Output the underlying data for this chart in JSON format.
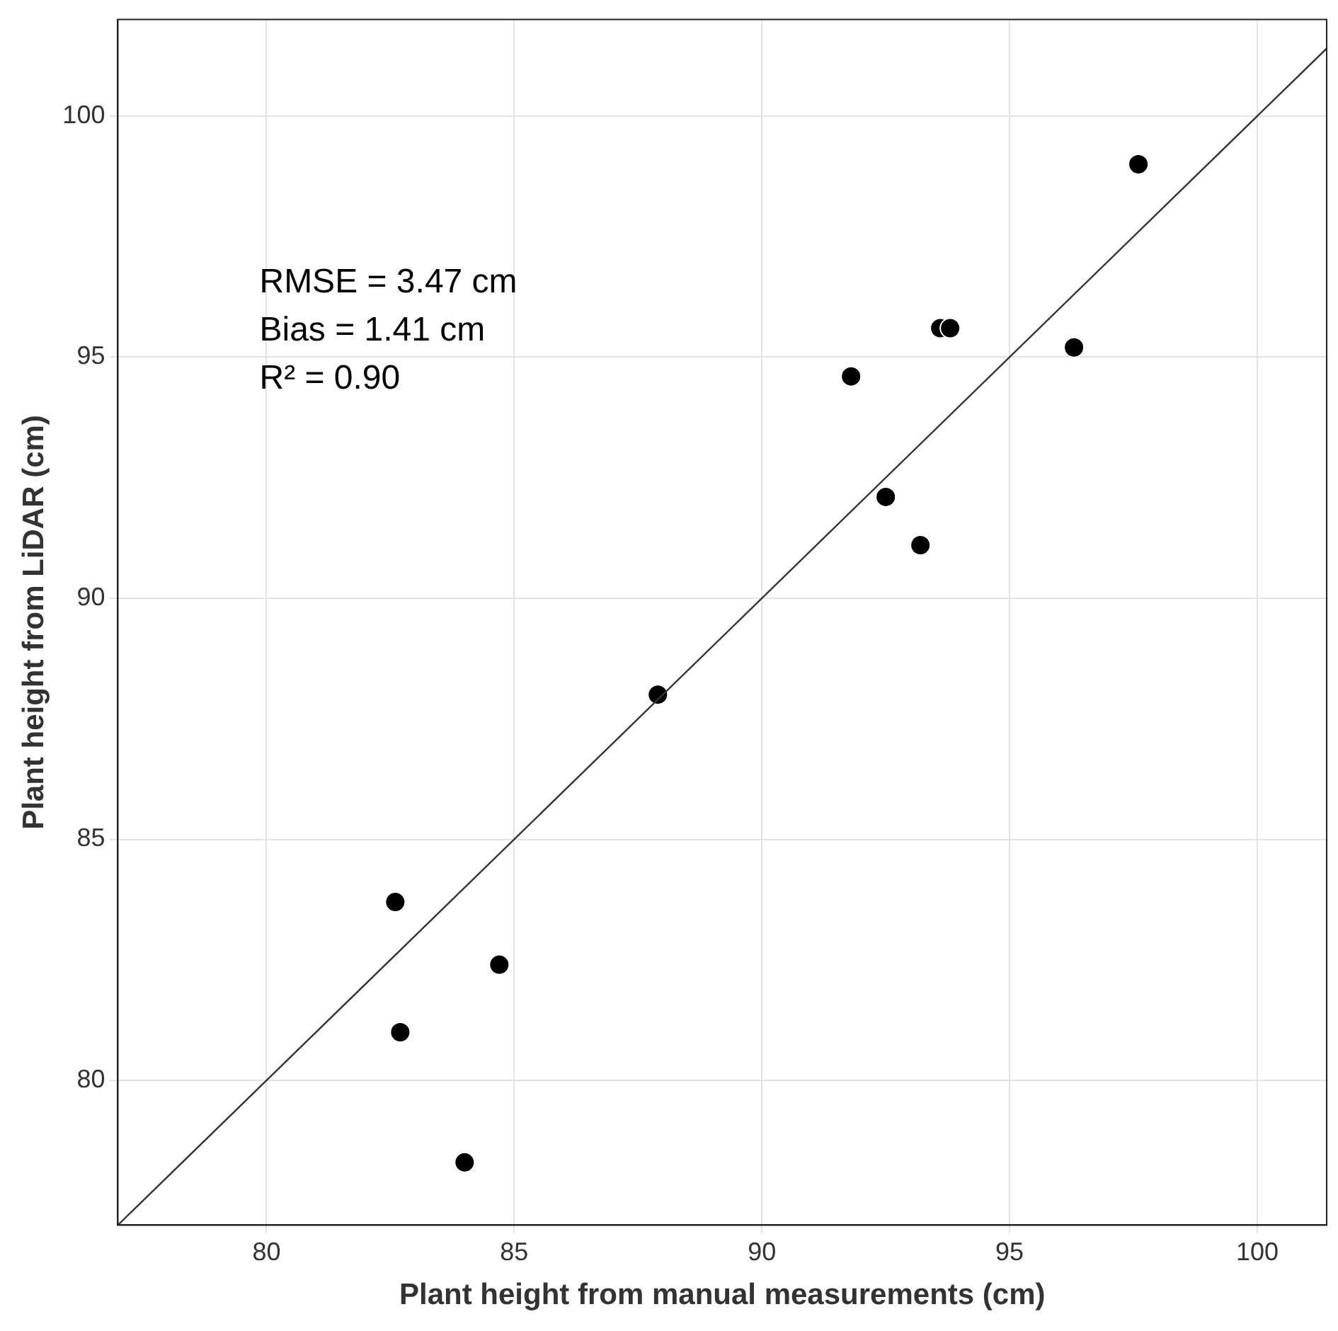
{
  "chart_data": {
    "type": "scatter",
    "xlabel": "Plant height from manual measurements (cm)",
    "ylabel": "Plant height from LiDAR (cm)",
    "annotations": [
      "RMSE = 3.47 cm",
      "Bias = 1.41 cm",
      "R² = 0.90"
    ],
    "xlim": [
      77,
      101.4
    ],
    "xticks": [
      80,
      85,
      90,
      95,
      100
    ],
    "ylim": [
      77,
      102
    ],
    "yticks": [
      80,
      85,
      90,
      95,
      100
    ],
    "grid": true,
    "legend": false,
    "marker": "circle",
    "series": [
      {
        "color": "#000000",
        "x": [
          97.6,
          93.6,
          93.8,
          96.3,
          91.8,
          92.5,
          93.2,
          87.9,
          82.6,
          84.7,
          82.7,
          84.0
        ],
        "values": [
          99.0,
          95.6,
          95.6,
          95.2,
          94.6,
          92.1,
          91.1,
          88.0,
          83.7,
          82.4,
          81.0,
          78.3
        ]
      },
      {
        "type": "line",
        "color": "#333333",
        "line_style": "solid",
        "marker": "none",
        "x": [
          77,
          101.4
        ],
        "values": [
          77,
          101.4
        ]
      }
    ]
  }
}
